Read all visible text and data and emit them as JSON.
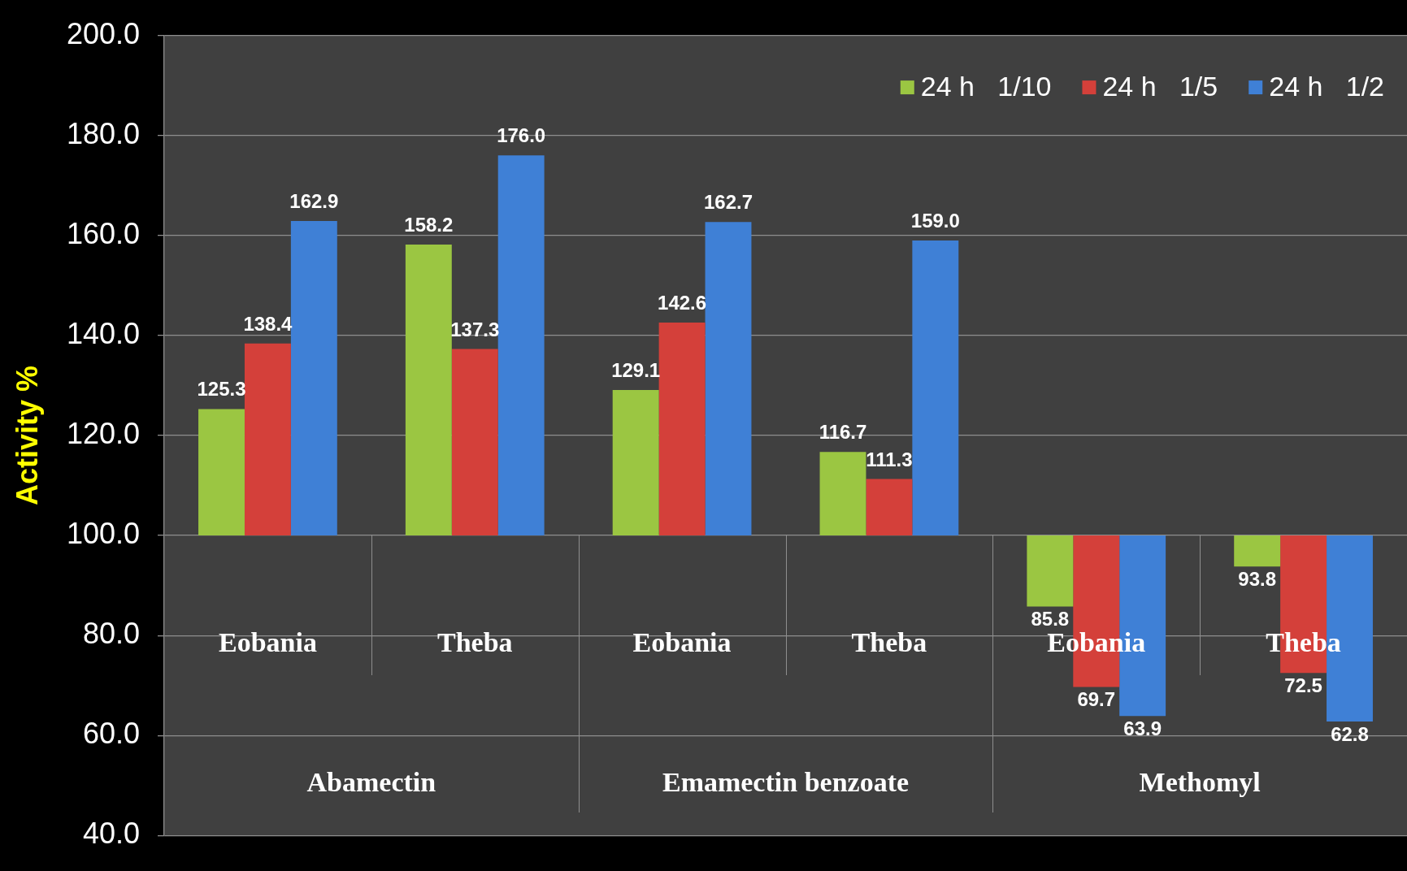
{
  "chart_data": {
    "type": "bar",
    "ylabel": "Activity %",
    "categories": [
      "Eobania",
      "Theba",
      "Eobania",
      "Theba",
      "Eobania",
      "Theba"
    ],
    "series": [
      {
        "name": "24 h   1/10",
        "color": "#9bc642",
        "base": [
          100,
          100,
          100,
          100,
          100,
          100
        ],
        "values": [
          25.3,
          58.2,
          29.1,
          16.7,
          -14.2,
          -6.2
        ],
        "value_labels": [
          "125.3",
          "158.2",
          "129.1",
          "116.7",
          "85.8",
          "93.8"
        ]
      },
      {
        "name": "24 h   1/5",
        "color": "#d4403a",
        "base": [
          100,
          100,
          100,
          100,
          100,
          100
        ],
        "values": [
          38.4,
          37.3,
          42.6,
          11.3,
          -30.3,
          -27.5
        ],
        "value_labels": [
          "138.4",
          "137.3",
          "142.6",
          "111.3",
          "69.7",
          "72.5"
        ]
      },
      {
        "name": "24 h   1/2",
        "color": "#3f80d6",
        "base": [
          100,
          100,
          100,
          100,
          100,
          100
        ],
        "values": [
          62.9,
          76.0,
          62.7,
          59.0,
          -36.1,
          -37.2
        ],
        "value_labels": [
          "162.9",
          "176.0",
          "162.7",
          "159.0",
          "63.9",
          "62.8"
        ]
      }
    ],
    "ylim": [
      40,
      200
    ],
    "yticks": [
      {
        "value": 40,
        "label": "40.0"
      },
      {
        "value": 60,
        "label": "60.0"
      },
      {
        "value": 80,
        "label": "80.0"
      },
      {
        "value": 100,
        "label": "100.0"
      },
      {
        "value": 120,
        "label": "120.0"
      },
      {
        "value": 140,
        "label": "140.0"
      },
      {
        "value": 160,
        "label": "160.0"
      },
      {
        "value": 180,
        "label": "180.0"
      },
      {
        "value": 200,
        "label": "200.0"
      }
    ],
    "grid": "y",
    "legend": "top right",
    "annotations": [
      "Abamectin",
      "Emamectin benzoate",
      "Methomyl"
    ]
  }
}
